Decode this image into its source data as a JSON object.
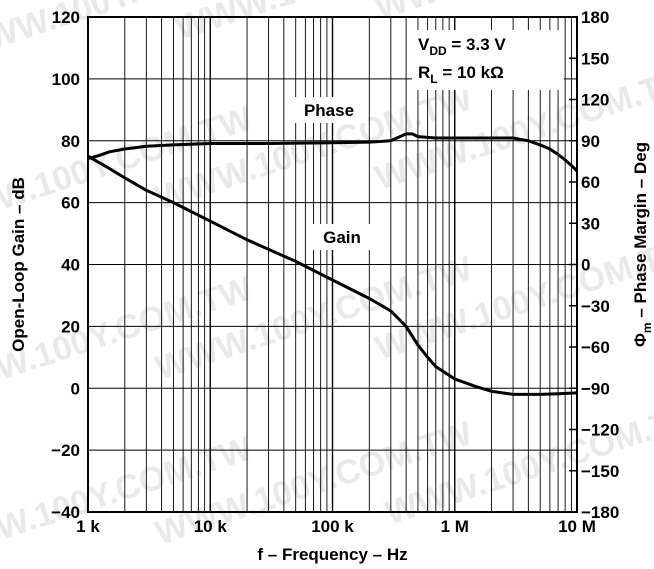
{
  "chart_data": {
    "type": "line",
    "title": "",
    "xlabel": "f – Frequency – Hz",
    "ylabel_left": "Open-Loop Gain – dB",
    "ylabel_right_symbol": "Φ",
    "ylabel_right_sub": "m",
    "ylabel_right_rest": " – Phase Margin – Deg",
    "x_scale": "log",
    "xlim": [
      1000,
      10000000
    ],
    "ylim_left": [
      -40,
      120
    ],
    "ylim_right": [
      -180,
      180
    ],
    "x_ticks": [
      {
        "value": 1000,
        "label": "1 k"
      },
      {
        "value": 10000,
        "label": "10 k"
      },
      {
        "value": 100000,
        "label": "100 k"
      },
      {
        "value": 1000000,
        "label": "1 M"
      },
      {
        "value": 10000000,
        "label": "10 M"
      }
    ],
    "y_ticks_left": [
      "120",
      "100",
      "80",
      "60",
      "40",
      "20",
      "0",
      "−20",
      "−40"
    ],
    "y_ticks_right": [
      "180",
      "150",
      "120",
      "90",
      "60",
      "30",
      "0",
      "−30",
      "−60",
      "−90",
      "−120",
      "−150",
      "−180"
    ],
    "grid": true,
    "annotation": {
      "vdd_main": "V",
      "vdd_sub": "DD",
      "vdd_rest": " = 3.3 V",
      "rl_main": "R",
      "rl_sub": "L",
      "rl_rest": " = 10 kΩ"
    },
    "series": [
      {
        "name": "Phase",
        "axis": "right",
        "color": "#000000",
        "points": [
          [
            1000,
            77
          ],
          [
            1200,
            79
          ],
          [
            1500,
            82
          ],
          [
            2000,
            84
          ],
          [
            3000,
            86
          ],
          [
            5000,
            87
          ],
          [
            10000,
            88
          ],
          [
            30000,
            88
          ],
          [
            100000,
            88.5
          ],
          [
            200000,
            89
          ],
          [
            300000,
            90
          ],
          [
            400000,
            95
          ],
          [
            450000,
            95
          ],
          [
            500000,
            93
          ],
          [
            700000,
            92
          ],
          [
            1000000,
            92
          ],
          [
            2000000,
            92
          ],
          [
            3000000,
            92
          ],
          [
            4000000,
            90
          ],
          [
            5000000,
            87
          ],
          [
            6000000,
            84
          ],
          [
            7000000,
            80
          ],
          [
            8000000,
            76
          ],
          [
            9000000,
            72
          ],
          [
            10000000,
            68
          ]
        ]
      },
      {
        "name": "Gain",
        "axis": "left",
        "color": "#000000",
        "points": [
          [
            1000,
            75
          ],
          [
            1500,
            71
          ],
          [
            2000,
            68
          ],
          [
            3000,
            64
          ],
          [
            5000,
            60
          ],
          [
            10000,
            54
          ],
          [
            20000,
            48
          ],
          [
            50000,
            41
          ],
          [
            100000,
            35
          ],
          [
            200000,
            29
          ],
          [
            300000,
            25
          ],
          [
            400000,
            20
          ],
          [
            500000,
            14
          ],
          [
            600000,
            10
          ],
          [
            700000,
            7
          ],
          [
            1000000,
            3
          ],
          [
            1500000,
            0.5
          ],
          [
            2000000,
            -1
          ],
          [
            3000000,
            -2
          ],
          [
            5000000,
            -2
          ],
          [
            7000000,
            -1.8
          ],
          [
            10000000,
            -1.5
          ]
        ]
      }
    ]
  },
  "watermark_text": "WWW.100Y.COM.TW"
}
